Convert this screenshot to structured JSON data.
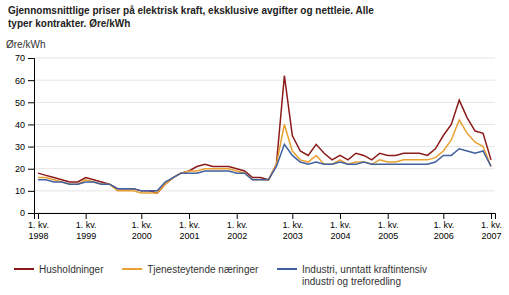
{
  "chart_data": {
    "type": "line",
    "title": "Gjennomsnittlige priser på elektrisk kraft, eksklusive avgifter og nettleie. Alle\ntyper kontrakter. Øre/kWh",
    "y_label": "Øre/kWh",
    "categories": [
      "1. kv.\n1998",
      null,
      null,
      null,
      null,
      null,
      "1. kv.\n1999",
      null,
      null,
      null,
      null,
      null,
      null,
      "1. kv.\n2000",
      null,
      null,
      null,
      null,
      null,
      "1. kv.\n2001",
      null,
      null,
      null,
      null,
      null,
      "1. kv.\n2002",
      null,
      null,
      null,
      null,
      null,
      null,
      "1. kv.\n2003",
      null,
      null,
      null,
      null,
      null,
      "1. kv.\n2004",
      null,
      null,
      null,
      null,
      null,
      "1. kv.\n2005",
      null,
      null,
      null,
      null,
      null,
      null,
      "1. kv.\n2006",
      null,
      null,
      null,
      null,
      null,
      "1. kv.\n2007"
    ],
    "series": [
      {
        "name": "Husholdninger",
        "color": "#8b1a1a",
        "values": [
          18,
          17,
          16,
          15,
          14,
          14,
          16,
          15,
          14,
          13,
          11,
          11,
          11,
          10,
          10,
          9,
          13,
          16,
          18,
          19,
          21,
          22,
          21,
          21,
          21,
          20,
          19,
          16,
          16,
          15,
          22,
          62,
          35,
          28,
          26,
          31,
          27,
          24,
          26,
          24,
          27,
          26,
          24,
          27,
          26,
          26,
          27,
          27,
          27,
          26,
          29,
          35,
          40,
          51,
          43,
          37,
          36,
          24
        ]
      },
      {
        "name": "Tjenesteytende næringer",
        "color": "#e8a030",
        "values": [
          16,
          16,
          15,
          14,
          13,
          13,
          15,
          14,
          13,
          13,
          10,
          10,
          10,
          9,
          9,
          9,
          13,
          16,
          18,
          19,
          19,
          20,
          20,
          20,
          20,
          19,
          18,
          15,
          15,
          15,
          22,
          40,
          28,
          24,
          23,
          26,
          22,
          22,
          24,
          22,
          23,
          23,
          22,
          24,
          23,
          23,
          24,
          24,
          24,
          24,
          25,
          28,
          33,
          42,
          36,
          32,
          30,
          21
        ]
      },
      {
        "name": "Industri, unntatt kraftintensiv\nindustri og treforedling",
        "color": "#4060a0",
        "values": [
          15,
          15,
          14,
          14,
          13,
          13,
          14,
          14,
          13,
          13,
          11,
          11,
          11,
          10,
          10,
          10,
          14,
          16,
          18,
          18,
          18,
          19,
          19,
          19,
          19,
          18,
          18,
          15,
          15,
          15,
          21,
          31,
          26,
          23,
          22,
          23,
          22,
          22,
          23,
          22,
          22,
          23,
          22,
          22,
          22,
          22,
          22,
          22,
          22,
          22,
          23,
          26,
          26,
          29,
          28,
          27,
          28,
          21
        ]
      }
    ],
    "ylim": [
      0,
      70
    ],
    "yticks": [
      0,
      10,
      20,
      30,
      40,
      50,
      60,
      70
    ],
    "grid": true,
    "legend": "bottom"
  }
}
